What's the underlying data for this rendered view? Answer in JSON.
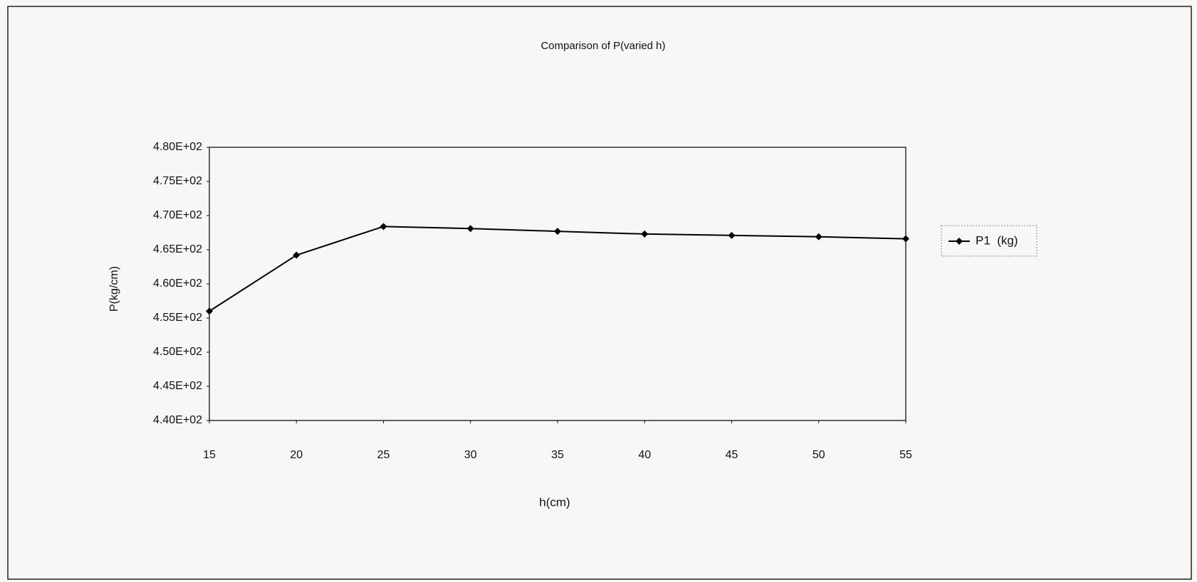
{
  "chart_data": {
    "type": "line",
    "title": "Comparison of P(varied h)",
    "x_label": "h(cm)",
    "y_label": "P(kg/cm)",
    "x": [
      15,
      20,
      25,
      30,
      35,
      40,
      45,
      50,
      55
    ],
    "series": [
      {
        "name": "P1  (kg)",
        "color": "#000000",
        "marker": "diamond",
        "values": [
          456.0,
          464.2,
          468.4,
          468.1,
          467.7,
          467.3,
          467.1,
          466.9,
          466.6
        ]
      }
    ],
    "xlim": [
      15,
      55
    ],
    "xticks": [
      15,
      20,
      25,
      30,
      35,
      40,
      45,
      50,
      55
    ],
    "ylim": [
      440,
      480
    ],
    "yticks": [
      {
        "value": 440,
        "label": "4.40E+02"
      },
      {
        "value": 445,
        "label": "4.45E+02"
      },
      {
        "value": 450,
        "label": "4.50E+02"
      },
      {
        "value": 455,
        "label": "4.55E+02"
      },
      {
        "value": 460,
        "label": "4.60E+02"
      },
      {
        "value": 465,
        "label": "4.65E+02"
      },
      {
        "value": 470,
        "label": "4.70E+02"
      },
      {
        "value": 475,
        "label": "4.75E+02"
      },
      {
        "value": 480,
        "label": "4.80E+02"
      }
    ],
    "grid": false,
    "legend_position": "right"
  }
}
